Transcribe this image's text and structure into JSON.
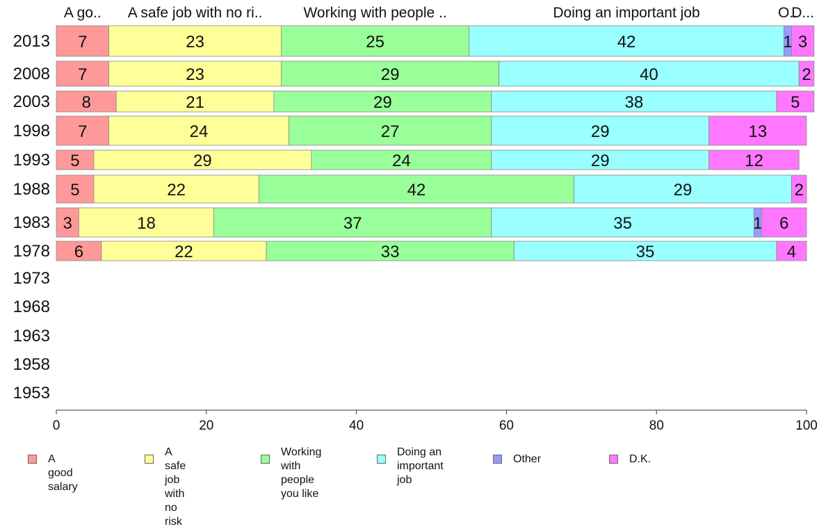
{
  "chart_data": {
    "type": "bar",
    "orientation": "horizontal",
    "stacked": true,
    "categories": [
      "2013",
      "2008",
      "2003",
      "1998",
      "1993",
      "1988",
      "1983",
      "1978",
      "1973",
      "1968",
      "1963",
      "1958",
      "1953"
    ],
    "series": [
      {
        "name": "A good salary",
        "short_label": "A go..",
        "color": "#ff9999",
        "values": [
          7,
          7,
          8,
          7,
          5,
          5,
          3,
          6,
          null,
          null,
          null,
          null,
          null
        ]
      },
      {
        "name": "A safe job\nwith no risk",
        "short_label": "A safe job with no ri..",
        "color": "#ffff99",
        "values": [
          23,
          23,
          21,
          24,
          29,
          22,
          18,
          22,
          null,
          null,
          null,
          null,
          null
        ]
      },
      {
        "name": "Working with\npeople you like",
        "short_label": "Working with people ..",
        "color": "#99ff99",
        "values": [
          25,
          29,
          29,
          27,
          24,
          42,
          37,
          33,
          null,
          null,
          null,
          null,
          null
        ]
      },
      {
        "name": "Doing an\nimportant job",
        "short_label": "Doing an important job",
        "color": "#99ffff",
        "values": [
          42,
          40,
          38,
          29,
          29,
          29,
          35,
          35,
          null,
          null,
          null,
          null,
          null
        ]
      },
      {
        "name": "Other",
        "short_label": "O..",
        "color": "#9999ff",
        "values": [
          1,
          null,
          null,
          null,
          null,
          null,
          1,
          null,
          null,
          null,
          null,
          null,
          null
        ]
      },
      {
        "name": "D.K.",
        "short_label": "D...",
        "color": "#ff77ff",
        "values": [
          3,
          2,
          5,
          13,
          12,
          2,
          6,
          4,
          null,
          null,
          null,
          null,
          null
        ]
      }
    ],
    "xlim": [
      0,
      100
    ],
    "xticks": [
      "0",
      "20",
      "40",
      "60",
      "80",
      "100"
    ],
    "grid": false,
    "legend_position": "bottom",
    "data_labels": true
  }
}
